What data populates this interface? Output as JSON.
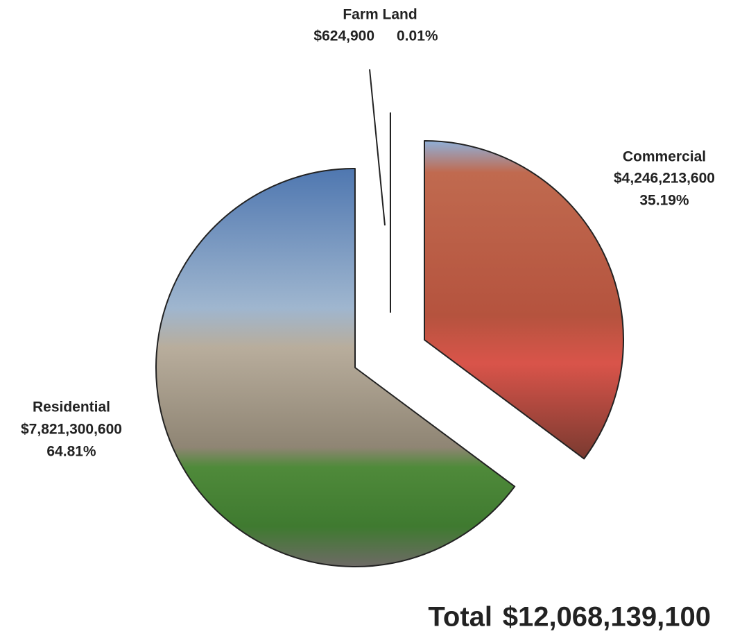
{
  "chart_data": {
    "type": "pie",
    "categories": [
      "Commercial",
      "Residential",
      "Farm Land"
    ],
    "values": [
      4246213600,
      7821300600,
      624900
    ],
    "value_labels": [
      "$4,246,213,600",
      "$7,821,300,600",
      "$624,900"
    ],
    "percents": [
      35.19,
      64.81,
      0.01
    ],
    "percent_labels": [
      "35.19%",
      "64.81%",
      "0.01%"
    ],
    "total_label": "Total",
    "total": 12068139100,
    "total_value_label": "$12,068,139,100"
  }
}
